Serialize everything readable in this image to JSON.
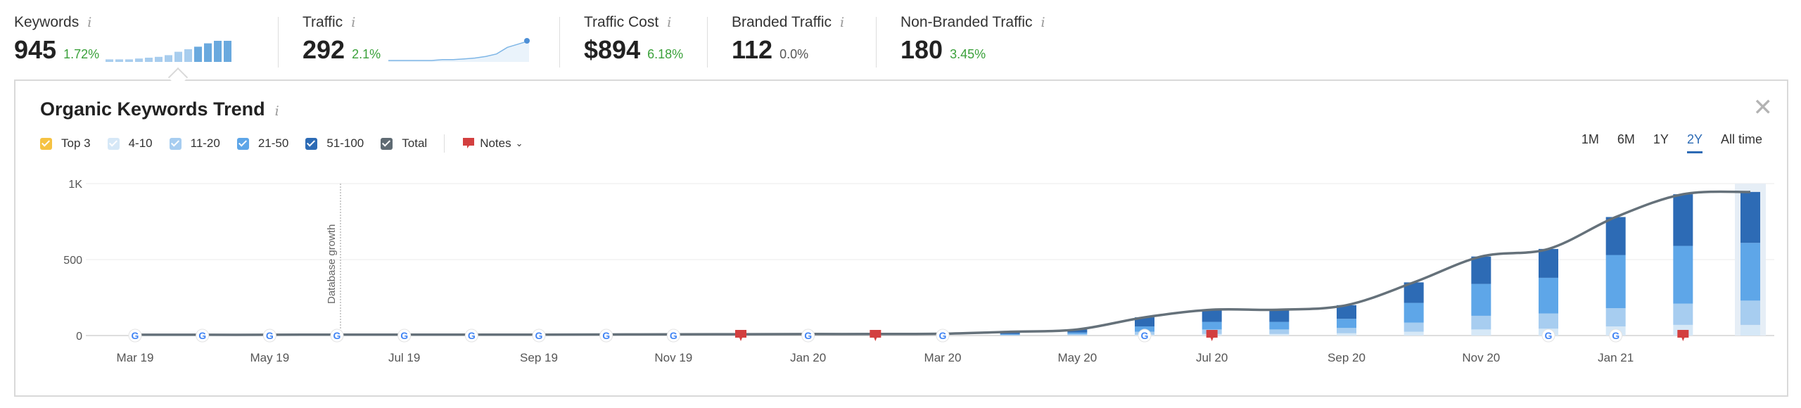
{
  "metrics": [
    {
      "label": "Keywords",
      "value": "945",
      "delta": "1.72%",
      "delta_color": "green",
      "spark": "bars"
    },
    {
      "label": "Traffic",
      "value": "292",
      "delta": "2.1%",
      "delta_color": "green",
      "spark": "line"
    },
    {
      "label": "Traffic Cost",
      "value": "$894",
      "delta": "6.18%",
      "delta_color": "green",
      "spark": "none"
    },
    {
      "label": "Branded Traffic",
      "value": "112",
      "delta": "0.0%",
      "delta_color": "gray",
      "spark": "none"
    },
    {
      "label": "Non-Branded Traffic",
      "value": "180",
      "delta": "3.45%",
      "delta_color": "green",
      "spark": "none"
    }
  ],
  "info_glyph": "i",
  "panel": {
    "title": "Organic Keywords Trend",
    "close_glyph": "✕",
    "legend": [
      {
        "label": "Top 3",
        "color": "#f5c242"
      },
      {
        "label": "4-10",
        "color": "#d6e8f7"
      },
      {
        "label": "11-20",
        "color": "#a7cdf0"
      },
      {
        "label": "21-50",
        "color": "#5ea6e8"
      },
      {
        "label": "51-100",
        "color": "#2d6bb5"
      },
      {
        "label": "Total",
        "color": "#5f6b73"
      }
    ],
    "notes_label": "Notes",
    "ranges": [
      "1M",
      "6M",
      "1Y",
      "2Y",
      "All time"
    ],
    "active_range": "2Y"
  },
  "sparklines": {
    "keywords_bars": [
      3,
      3,
      3,
      4,
      5,
      6,
      8,
      12,
      15,
      18,
      22,
      25,
      25
    ],
    "traffic_line": [
      0,
      0,
      0,
      0,
      0,
      1,
      1,
      2,
      3,
      5,
      8,
      16,
      20,
      24
    ]
  },
  "chart_data": {
    "type": "bar",
    "title": "Organic Keywords Trend",
    "x_tick_labels": [
      "Mar 19",
      "May 19",
      "Jul 19",
      "Sep 19",
      "Nov 19",
      "Jan 20",
      "Mar 20",
      "May 20",
      "Jul 20",
      "Sep 20",
      "Nov 20",
      "Jan 21"
    ],
    "y_tick_labels": [
      "0",
      "500",
      "1K"
    ],
    "ylim": [
      0,
      1000
    ],
    "annotation": "Database growth",
    "grid": true,
    "series": [
      {
        "name": "Top 3",
        "color": "#f5c242"
      },
      {
        "name": "4-10",
        "color": "#d6e8f7"
      },
      {
        "name": "11-20",
        "color": "#a7cdf0"
      },
      {
        "name": "21-50",
        "color": "#5ea6e8"
      },
      {
        "name": "51-100",
        "color": "#2d6bb5"
      },
      {
        "name": "Total",
        "color": "#5f6b73"
      }
    ],
    "points": [
      {
        "total": 5,
        "b": [
          0,
          0,
          0,
          0,
          0
        ]
      },
      {
        "total": 5,
        "b": [
          0,
          0,
          0,
          0,
          0
        ]
      },
      {
        "total": 5,
        "b": [
          0,
          0,
          0,
          0,
          0
        ]
      },
      {
        "total": 6,
        "b": [
          0,
          0,
          0,
          0,
          0
        ]
      },
      {
        "total": 6,
        "b": [
          0,
          0,
          0,
          0,
          0
        ]
      },
      {
        "total": 6,
        "b": [
          0,
          0,
          0,
          0,
          0
        ]
      },
      {
        "total": 6,
        "b": [
          0,
          0,
          0,
          0,
          0
        ]
      },
      {
        "total": 7,
        "b": [
          0,
          0,
          0,
          0,
          0
        ]
      },
      {
        "total": 8,
        "b": [
          0,
          0,
          0,
          0,
          0
        ]
      },
      {
        "total": 9,
        "b": [
          0,
          0,
          0,
          0,
          0
        ]
      },
      {
        "total": 10,
        "b": [
          0,
          0,
          0,
          0,
          0
        ]
      },
      {
        "total": 10,
        "b": [
          0,
          0,
          0,
          0,
          0
        ]
      },
      {
        "total": 12,
        "b": [
          0,
          0,
          0,
          0,
          0
        ]
      },
      {
        "total": 25,
        "b": [
          0,
          1,
          4,
          5,
          15
        ]
      },
      {
        "total": 40,
        "b": [
          0,
          2,
          8,
          10,
          20
        ]
      },
      {
        "total": 120,
        "b": [
          0,
          5,
          20,
          35,
          60
        ]
      },
      {
        "total": 170,
        "b": [
          0,
          10,
          30,
          50,
          80
        ]
      },
      {
        "total": 170,
        "b": [
          0,
          10,
          30,
          50,
          80
        ]
      },
      {
        "total": 200,
        "b": [
          0,
          15,
          35,
          60,
          90
        ]
      },
      {
        "total": 350,
        "b": [
          0,
          25,
          60,
          130,
          135
        ]
      },
      {
        "total": 520,
        "b": [
          0,
          40,
          90,
          210,
          180
        ]
      },
      {
        "total": 570,
        "b": [
          0,
          45,
          100,
          235,
          190
        ]
      },
      {
        "total": 780,
        "b": [
          0,
          60,
          120,
          350,
          250
        ]
      },
      {
        "total": 930,
        "b": [
          0,
          70,
          140,
          380,
          340
        ]
      },
      {
        "total": 945,
        "b": [
          0,
          70,
          160,
          380,
          335
        ]
      }
    ],
    "events": [
      {
        "index": 0,
        "type": "google"
      },
      {
        "index": 1,
        "type": "google"
      },
      {
        "index": 2,
        "type": "google"
      },
      {
        "index": 3,
        "type": "google"
      },
      {
        "index": 4,
        "type": "google"
      },
      {
        "index": 5,
        "type": "google"
      },
      {
        "index": 6,
        "type": "google"
      },
      {
        "index": 7,
        "type": "google"
      },
      {
        "index": 8,
        "type": "google"
      },
      {
        "index": 9,
        "type": "note"
      },
      {
        "index": 10,
        "type": "google"
      },
      {
        "index": 11,
        "type": "note"
      },
      {
        "index": 12,
        "type": "google"
      },
      {
        "index": 15,
        "type": "google"
      },
      {
        "index": 16,
        "type": "note"
      },
      {
        "index": 21,
        "type": "google"
      },
      {
        "index": 22,
        "type": "google"
      },
      {
        "index": 23,
        "type": "note"
      }
    ]
  }
}
